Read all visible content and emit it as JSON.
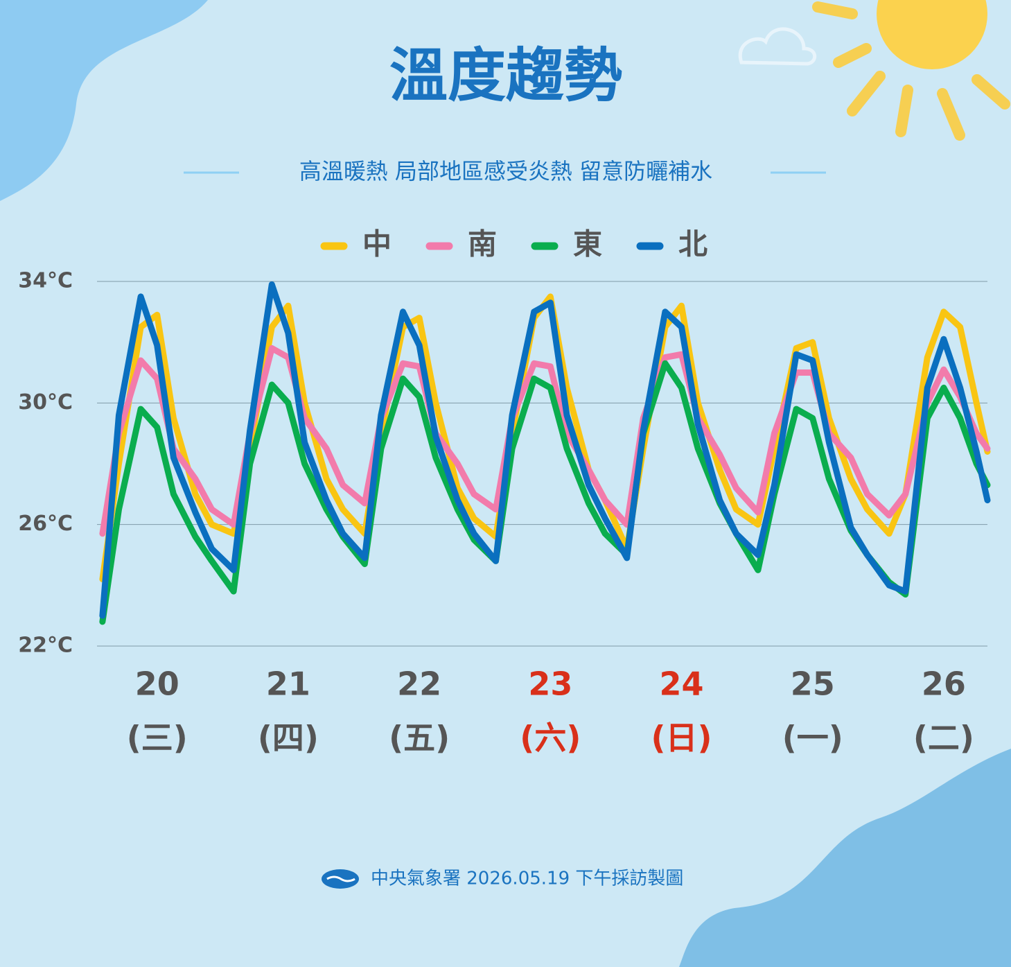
{
  "chart_data": {
    "type": "line",
    "title": "溫度趨勢",
    "subtitle": "高溫暖熱 局部地區感受炎熱 留意防曬補水",
    "footer": "中央氣象署 2026.05.19 下午採訪製圖",
    "x": [
      2,
      5,
      9,
      12,
      15,
      19,
      22,
      26,
      29,
      33,
      36,
      39,
      43,
      46,
      50,
      53,
      57,
      60,
      63,
      67,
      70,
      74,
      77,
      81,
      84,
      87,
      91,
      94,
      98,
      101,
      105,
      108,
      111,
      115,
      118,
      122,
      125,
      129,
      132,
      135,
      139,
      142,
      146,
      149,
      153,
      156,
      159,
      162,
      164
    ],
    "xlim": [
      1,
      164
    ],
    "xticks": [
      {
        "value": 12,
        "label": "20",
        "weekday": "(三)",
        "color": "#555555"
      },
      {
        "value": 36,
        "label": "21",
        "weekday": "(四)",
        "color": "#555555"
      },
      {
        "value": 60,
        "label": "22",
        "weekday": "(五)",
        "color": "#555555"
      },
      {
        "value": 84,
        "label": "23",
        "weekday": "(六)",
        "color": "#d9301a"
      },
      {
        "value": 108,
        "label": "24",
        "weekday": "(日)",
        "color": "#d9301a"
      },
      {
        "value": 132,
        "label": "25",
        "weekday": "(一)",
        "color": "#555555"
      },
      {
        "value": 156,
        "label": "26",
        "weekday": "(二)",
        "color": "#555555"
      }
    ],
    "ylim": [
      22,
      34
    ],
    "yticks": [
      {
        "value": 22,
        "label": "22°C"
      },
      {
        "value": 26,
        "label": "26°C"
      },
      {
        "value": 30,
        "label": "30°C"
      },
      {
        "value": 34,
        "label": "34°C"
      }
    ],
    "grid": true,
    "series": [
      {
        "name": "中",
        "color": "#f9c513",
        "values": [
          24.2,
          28.0,
          32.5,
          32.9,
          29.5,
          27.0,
          26.0,
          25.7,
          28.5,
          32.5,
          33.2,
          30.0,
          27.5,
          26.5,
          25.7,
          29.0,
          32.5,
          32.8,
          30.0,
          27.2,
          26.2,
          25.6,
          29.0,
          32.8,
          33.5,
          30.5,
          27.8,
          26.8,
          25.2,
          28.5,
          32.5,
          33.2,
          30.0,
          27.8,
          26.5,
          26.0,
          28.5,
          31.8,
          32.0,
          29.5,
          27.5,
          26.5,
          25.7,
          27.0,
          31.5,
          33.0,
          32.5,
          30.0,
          28.4
        ]
      },
      {
        "name": "南",
        "color": "#f27bab",
        "values": [
          25.7,
          29.0,
          31.4,
          30.8,
          28.5,
          27.5,
          26.5,
          26.0,
          29.0,
          31.8,
          31.5,
          29.5,
          28.5,
          27.3,
          26.7,
          29.5,
          31.3,
          31.2,
          29.0,
          28.0,
          27.0,
          26.5,
          29.5,
          31.3,
          31.2,
          29.0,
          27.8,
          26.8,
          26.0,
          29.5,
          31.5,
          31.6,
          29.5,
          28.3,
          27.2,
          26.4,
          29.0,
          31.0,
          31.0,
          29.0,
          28.2,
          27.0,
          26.3,
          27.0,
          30.0,
          31.1,
          30.2,
          29.0,
          28.5
        ]
      },
      {
        "name": "東",
        "color": "#0aad4e",
        "values": [
          22.8,
          26.5,
          29.8,
          29.2,
          27.0,
          25.6,
          24.8,
          23.8,
          28.0,
          30.6,
          30.0,
          28.0,
          26.5,
          25.6,
          24.7,
          28.5,
          30.8,
          30.2,
          28.2,
          26.5,
          25.5,
          24.8,
          28.5,
          30.8,
          30.5,
          28.5,
          26.7,
          25.7,
          25.0,
          29.0,
          31.3,
          30.5,
          28.5,
          26.7,
          25.7,
          24.5,
          27.0,
          29.8,
          29.5,
          27.5,
          25.8,
          25.0,
          24.1,
          23.7,
          29.5,
          30.5,
          29.5,
          28.0,
          27.3
        ]
      },
      {
        "name": "北",
        "color": "#0a6fbf",
        "values": [
          23.0,
          29.6,
          33.5,
          31.9,
          28.2,
          26.4,
          25.2,
          24.5,
          29.1,
          33.9,
          32.3,
          28.7,
          26.8,
          25.7,
          24.9,
          29.6,
          33.0,
          31.9,
          28.9,
          26.8,
          25.7,
          24.8,
          29.6,
          33.0,
          33.3,
          29.6,
          27.3,
          26.2,
          24.9,
          29.1,
          33.0,
          32.5,
          29.3,
          26.8,
          25.7,
          25.0,
          27.3,
          31.6,
          31.4,
          28.7,
          25.9,
          25.0,
          24.0,
          23.8,
          30.5,
          32.1,
          30.5,
          28.4,
          26.8
        ]
      }
    ]
  }
}
